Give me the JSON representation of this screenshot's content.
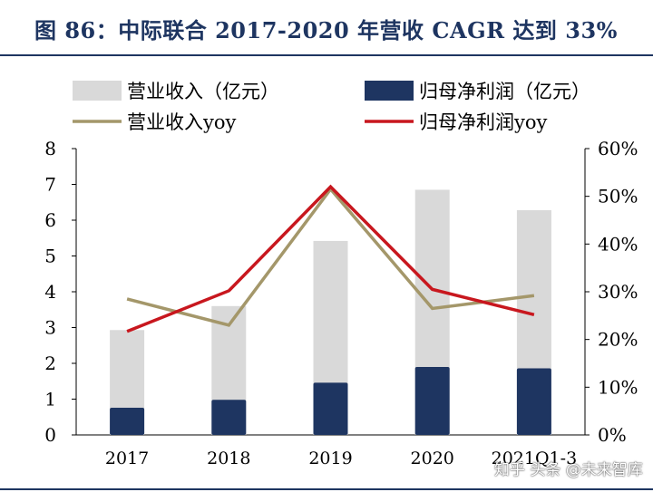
{
  "title": "图 86：中际联合 2017-2020 年营收 CAGR 达到 33%",
  "watermark": "知乎 头条 @未来智库",
  "colors": {
    "revenue_bar": "#d9d9d9",
    "profit_bar": "#1e3561",
    "revenue_yoy_line": "#a4976a",
    "profit_yoy_line": "#c8171e",
    "title": "#1e3561"
  },
  "chart_data": {
    "type": "bar",
    "title": "图 86：中际联合 2017-2020 年营收 CAGR 达到 33%",
    "categories": [
      "2017",
      "2018",
      "2019",
      "2020",
      "2021Q1-3"
    ],
    "series": [
      {
        "name": "营业收入（亿元）",
        "type": "bar",
        "axis": "left",
        "values": [
          2.93,
          3.6,
          5.42,
          6.85,
          6.28
        ]
      },
      {
        "name": "归母净利润（亿元）",
        "type": "bar",
        "axis": "left",
        "values": [
          0.76,
          0.98,
          1.46,
          1.9,
          1.86
        ]
      },
      {
        "name": "营业收入yoy",
        "type": "line",
        "axis": "right",
        "values": [
          28.5,
          23.0,
          51.5,
          26.5,
          29.2
        ]
      },
      {
        "name": "归母净利润yoy",
        "type": "line",
        "axis": "right",
        "values": [
          21.7,
          30.2,
          52.0,
          30.5,
          25.2
        ]
      }
    ],
    "yaxis_left": {
      "min": 0,
      "max": 8,
      "ticks": [
        "0",
        "1",
        "2",
        "3",
        "4",
        "5",
        "6",
        "7",
        "8"
      ]
    },
    "yaxis_right": {
      "min": 0,
      "max": 60,
      "ticks": [
        "0%",
        "10%",
        "20%",
        "30%",
        "40%",
        "50%",
        "60%"
      ]
    },
    "xlabel": "",
    "ylabel": "",
    "grid": false,
    "legend": "top"
  }
}
